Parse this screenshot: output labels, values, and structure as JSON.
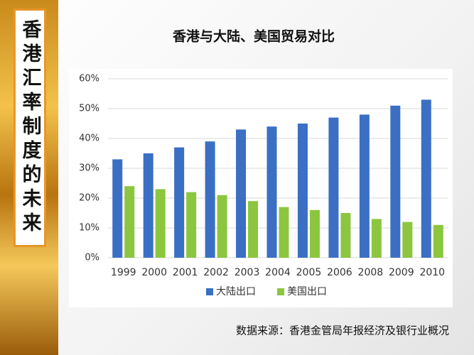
{
  "sidebar_title": "香港汇率制度的未来",
  "chart_data": {
    "type": "bar",
    "title": "香港与大陆、美国贸易对比",
    "categories": [
      "1999",
      "2000",
      "2001",
      "2002",
      "2003",
      "2004",
      "2005",
      "2006",
      "2008",
      "2009",
      "2010"
    ],
    "series": [
      {
        "name": "大陆出口",
        "color": "#3a6fc4",
        "values": [
          33,
          35,
          37,
          39,
          43,
          44,
          45,
          47,
          48,
          51,
          53
        ]
      },
      {
        "name": "美国出口",
        "color": "#8cc63f",
        "values": [
          24,
          23,
          22,
          21,
          19,
          17,
          16,
          15,
          13,
          12,
          11
        ]
      }
    ],
    "ylim": [
      0,
      60
    ],
    "yticks": [
      {
        "value": 0,
        "label": "0%"
      },
      {
        "value": 10,
        "label": "10%"
      },
      {
        "value": 20,
        "label": "20%"
      },
      {
        "value": 30,
        "label": "30%"
      },
      {
        "value": 40,
        "label": "40%"
      },
      {
        "value": 50,
        "label": "50%"
      },
      {
        "value": 60,
        "label": "60%"
      }
    ],
    "grid": true,
    "legend": "bottom",
    "source": "数据来源：香港金管局年报经济及银行业概况"
  }
}
